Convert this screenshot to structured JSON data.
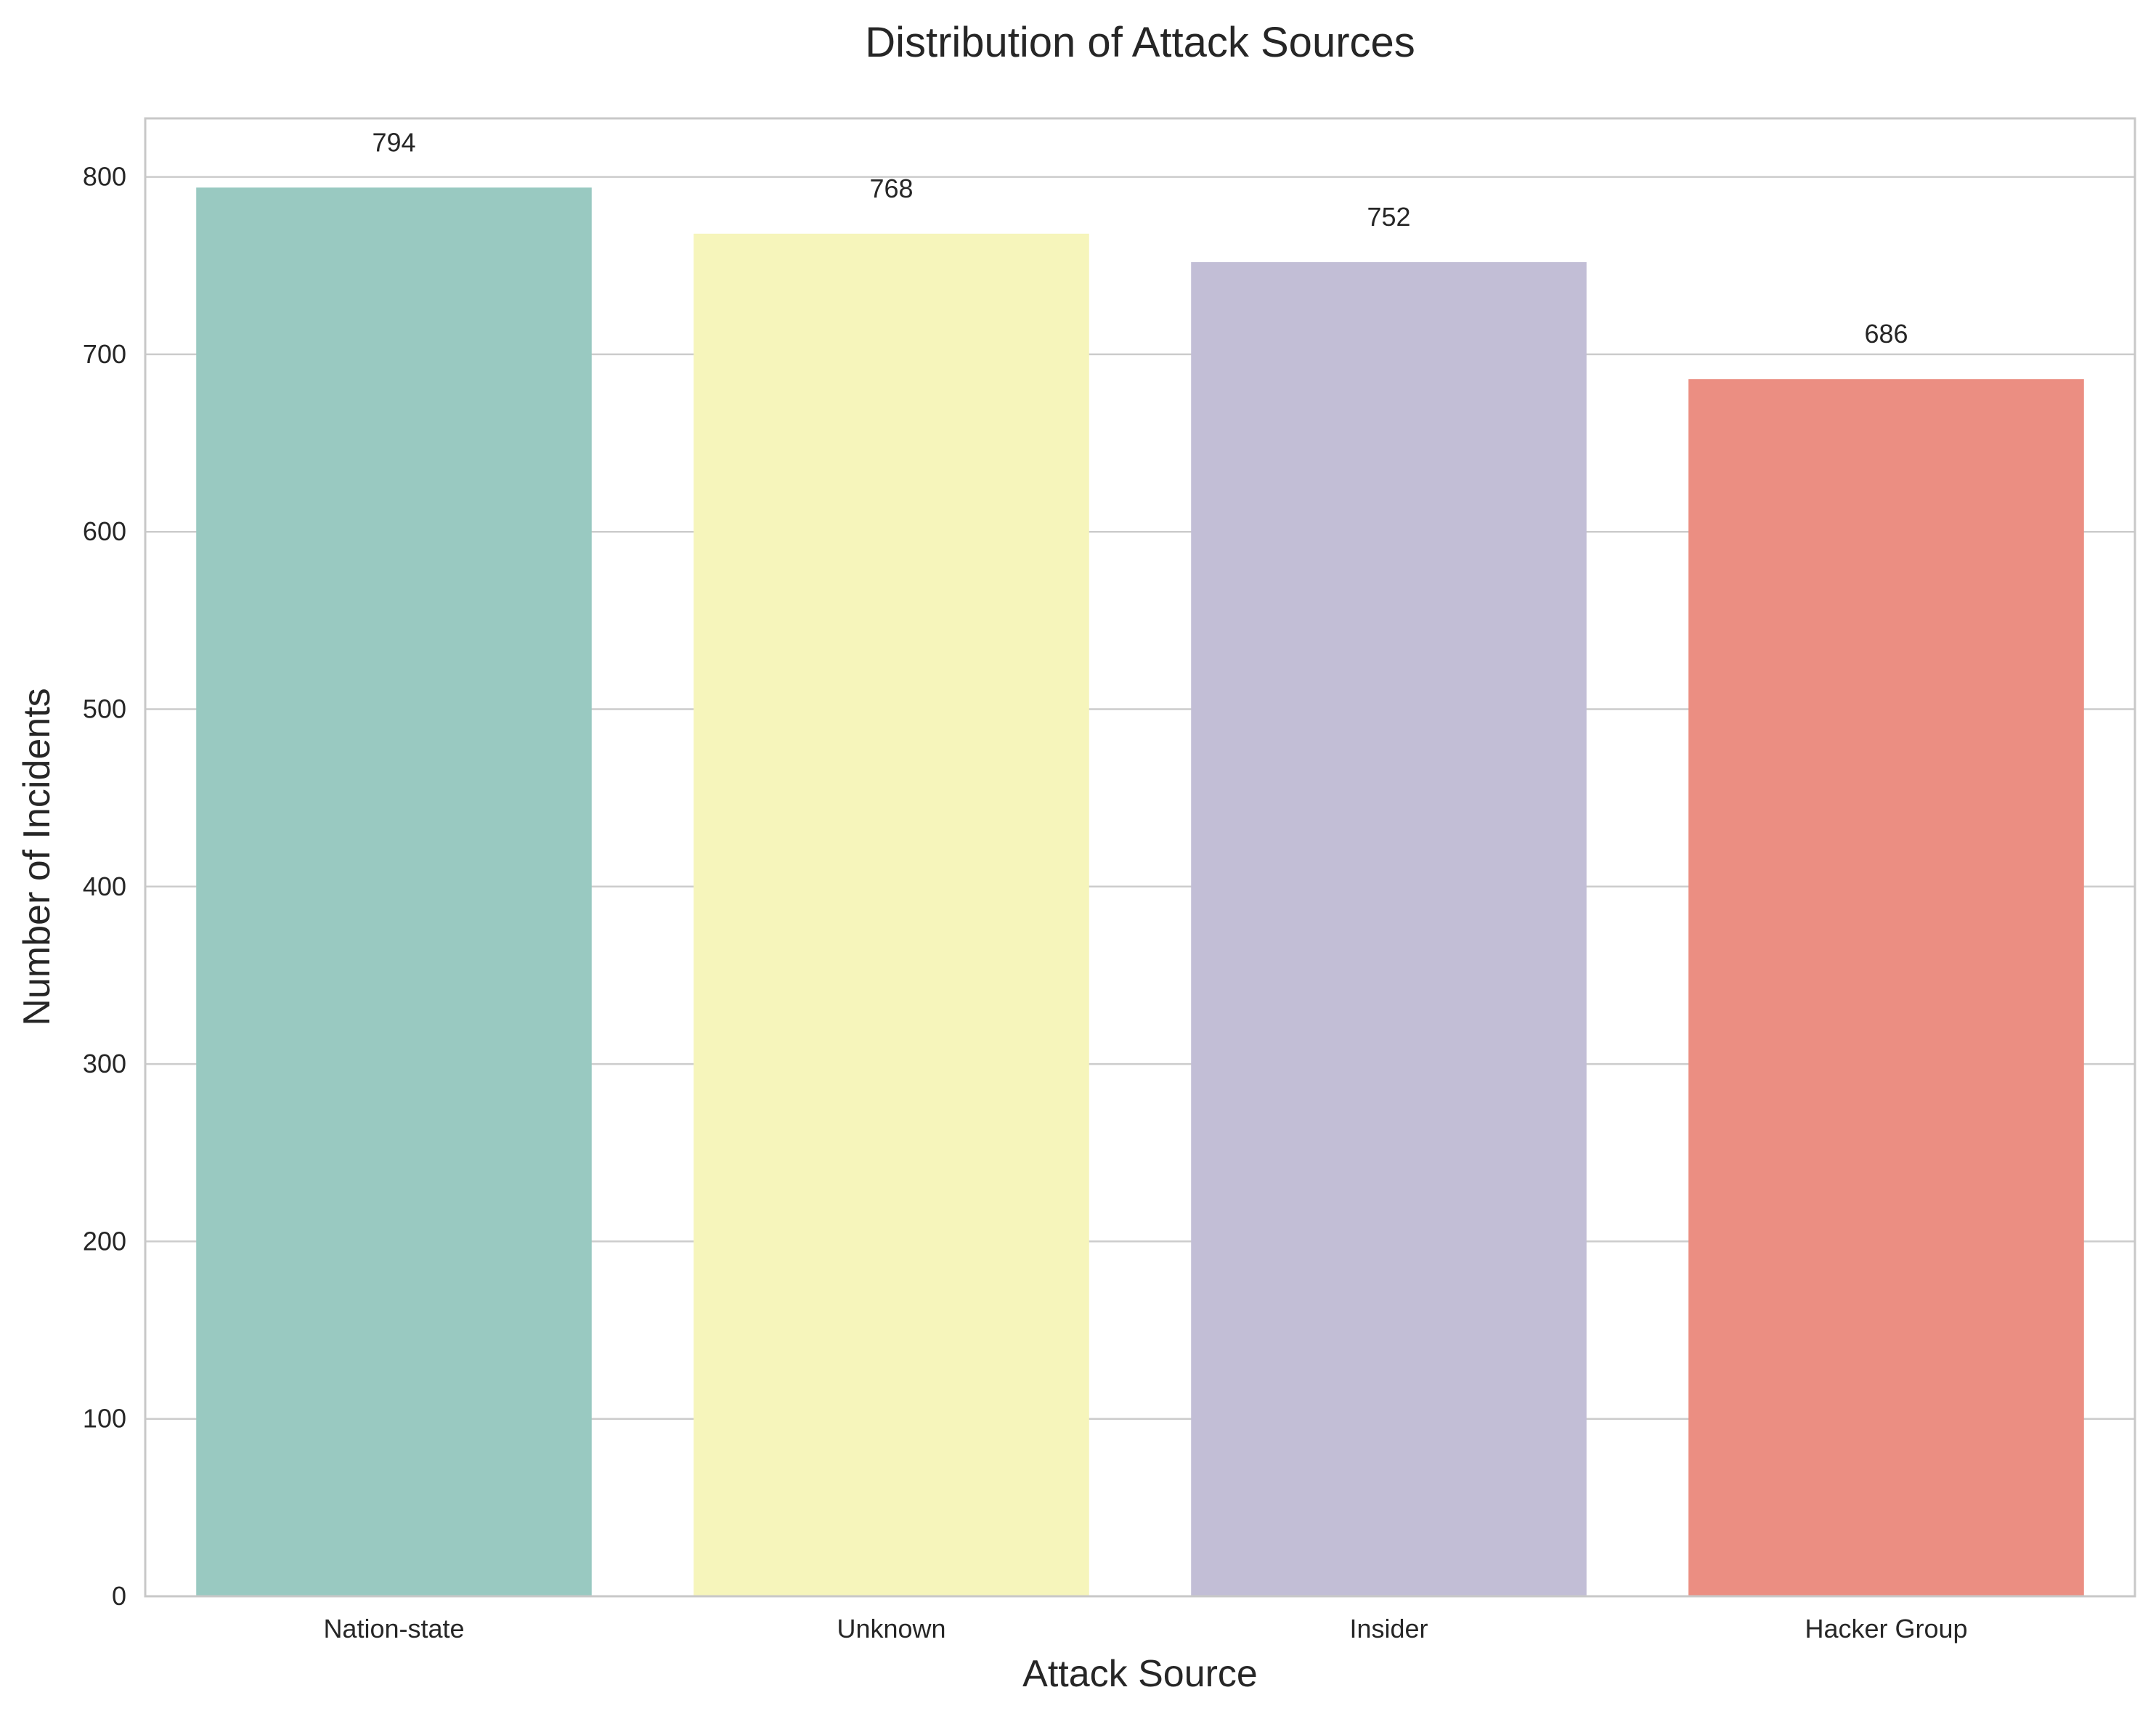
{
  "chart_data": {
    "type": "bar",
    "title": "Distribution of Attack Sources",
    "xlabel": "Attack Source",
    "ylabel": "Number of Incidents",
    "categories": [
      "Nation-state",
      "Unknown",
      "Insider",
      "Hacker Group"
    ],
    "values": [
      794,
      768,
      752,
      686
    ],
    "data_labels": [
      "794",
      "768",
      "752",
      "686"
    ],
    "colors": [
      "#99c9c1",
      "#f6f5bb",
      "#c2bed6",
      "#eb8e82"
    ],
    "ylim": [
      0,
      833
    ],
    "yticks": [
      0,
      100,
      200,
      300,
      400,
      500,
      600,
      700,
      800
    ],
    "ytick_labels": [
      "0",
      "100",
      "200",
      "300",
      "400",
      "500",
      "600",
      "700",
      "800"
    ],
    "grid": true,
    "legend": "none"
  }
}
